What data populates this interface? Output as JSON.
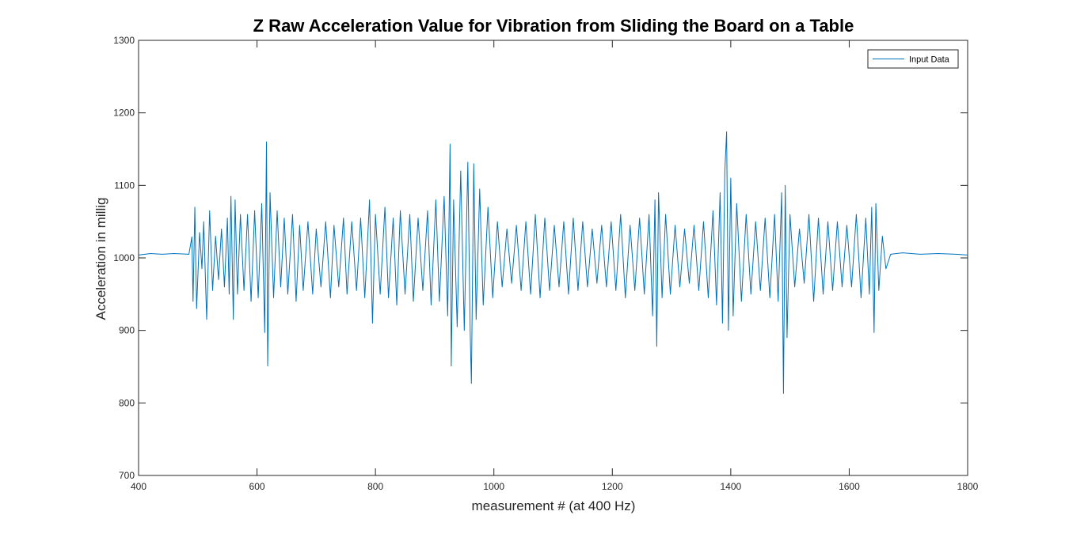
{
  "chart_data": {
    "type": "line",
    "title": "Z Raw Acceleration Value for Vibration from Sliding the Board on a Table",
    "xlabel": "measurement # (at 400 Hz)",
    "ylabel": "Acceleration in millig",
    "xlim": [
      400,
      1800
    ],
    "ylim": [
      700,
      1300
    ],
    "xticks": [
      400,
      600,
      800,
      1000,
      1200,
      1400,
      1600,
      1800
    ],
    "yticks": [
      700,
      800,
      900,
      1000,
      1100,
      1200,
      1300
    ],
    "grid": false,
    "legend_position": "top-right",
    "series": [
      {
        "name": "Input Data",
        "color": "#0072BD",
        "points": [
          [
            400,
            1004
          ],
          [
            420,
            1006
          ],
          [
            440,
            1005
          ],
          [
            460,
            1006
          ],
          [
            485,
            1005
          ],
          [
            490,
            1029
          ],
          [
            492,
            940
          ],
          [
            495,
            1070
          ],
          [
            498,
            930
          ],
          [
            503,
            1035
          ],
          [
            507,
            985
          ],
          [
            510,
            1050
          ],
          [
            515,
            915
          ],
          [
            520,
            1065
          ],
          [
            525,
            955
          ],
          [
            530,
            1030
          ],
          [
            535,
            970
          ],
          [
            540,
            1040
          ],
          [
            545,
            960
          ],
          [
            550,
            1055
          ],
          [
            553,
            950
          ],
          [
            556,
            1085
          ],
          [
            560,
            915
          ],
          [
            563,
            1080
          ],
          [
            567,
            950
          ],
          [
            572,
            1060
          ],
          [
            578,
            955
          ],
          [
            584,
            1060
          ],
          [
            590,
            940
          ],
          [
            596,
            1065
          ],
          [
            602,
            945
          ],
          [
            608,
            1075
          ],
          [
            613,
            897
          ],
          [
            616,
            1160
          ],
          [
            618,
            851
          ],
          [
            622,
            1090
          ],
          [
            628,
            945
          ],
          [
            634,
            1065
          ],
          [
            640,
            960
          ],
          [
            646,
            1055
          ],
          [
            652,
            950
          ],
          [
            660,
            1060
          ],
          [
            666,
            940
          ],
          [
            672,
            1045
          ],
          [
            678,
            955
          ],
          [
            686,
            1050
          ],
          [
            694,
            950
          ],
          [
            700,
            1040
          ],
          [
            708,
            960
          ],
          [
            716,
            1050
          ],
          [
            724,
            945
          ],
          [
            730,
            1045
          ],
          [
            738,
            960
          ],
          [
            746,
            1055
          ],
          [
            752,
            950
          ],
          [
            760,
            1050
          ],
          [
            768,
            955
          ],
          [
            775,
            1055
          ],
          [
            782,
            945
          ],
          [
            790,
            1080
          ],
          [
            795,
            910
          ],
          [
            800,
            1060
          ],
          [
            808,
            950
          ],
          [
            816,
            1070
          ],
          [
            822,
            945
          ],
          [
            830,
            1055
          ],
          [
            836,
            935
          ],
          [
            842,
            1065
          ],
          [
            850,
            950
          ],
          [
            858,
            1060
          ],
          [
            864,
            940
          ],
          [
            872,
            1055
          ],
          [
            880,
            955
          ],
          [
            888,
            1065
          ],
          [
            894,
            935
          ],
          [
            902,
            1080
          ],
          [
            908,
            940
          ],
          [
            916,
            1085
          ],
          [
            922,
            920
          ],
          [
            926,
            1157
          ],
          [
            928,
            851
          ],
          [
            932,
            1080
          ],
          [
            938,
            905
          ],
          [
            944,
            1120
          ],
          [
            950,
            900
          ],
          [
            956,
            1132
          ],
          [
            960,
            897
          ],
          [
            962,
            827
          ],
          [
            966,
            1130
          ],
          [
            970,
            915
          ],
          [
            976,
            1095
          ],
          [
            982,
            935
          ],
          [
            990,
            1070
          ],
          [
            998,
            945
          ],
          [
            1006,
            1050
          ],
          [
            1014,
            960
          ],
          [
            1022,
            1040
          ],
          [
            1030,
            965
          ],
          [
            1038,
            1045
          ],
          [
            1046,
            955
          ],
          [
            1054,
            1050
          ],
          [
            1062,
            950
          ],
          [
            1070,
            1060
          ],
          [
            1078,
            945
          ],
          [
            1086,
            1055
          ],
          [
            1094,
            955
          ],
          [
            1102,
            1045
          ],
          [
            1110,
            960
          ],
          [
            1118,
            1050
          ],
          [
            1126,
            950
          ],
          [
            1134,
            1055
          ],
          [
            1142,
            955
          ],
          [
            1150,
            1050
          ],
          [
            1158,
            960
          ],
          [
            1166,
            1040
          ],
          [
            1174,
            965
          ],
          [
            1182,
            1045
          ],
          [
            1190,
            960
          ],
          [
            1198,
            1050
          ],
          [
            1206,
            955
          ],
          [
            1214,
            1060
          ],
          [
            1222,
            945
          ],
          [
            1230,
            1045
          ],
          [
            1238,
            955
          ],
          [
            1246,
            1055
          ],
          [
            1254,
            950
          ],
          [
            1262,
            1060
          ],
          [
            1268,
            920
          ],
          [
            1272,
            1080
          ],
          [
            1275,
            878
          ],
          [
            1278,
            1090
          ],
          [
            1284,
            945
          ],
          [
            1290,
            1060
          ],
          [
            1298,
            950
          ],
          [
            1306,
            1045
          ],
          [
            1314,
            960
          ],
          [
            1322,
            1040
          ],
          [
            1330,
            965
          ],
          [
            1338,
            1045
          ],
          [
            1346,
            955
          ],
          [
            1354,
            1050
          ],
          [
            1362,
            945
          ],
          [
            1370,
            1065
          ],
          [
            1376,
            935
          ],
          [
            1382,
            1090
          ],
          [
            1386,
            910
          ],
          [
            1390,
            1120
          ],
          [
            1393,
            1174
          ],
          [
            1396,
            900
          ],
          [
            1400,
            1110
          ],
          [
            1404,
            920
          ],
          [
            1410,
            1075
          ],
          [
            1418,
            940
          ],
          [
            1426,
            1060
          ],
          [
            1434,
            950
          ],
          [
            1442,
            1050
          ],
          [
            1450,
            955
          ],
          [
            1458,
            1055
          ],
          [
            1466,
            945
          ],
          [
            1474,
            1060
          ],
          [
            1480,
            940
          ],
          [
            1486,
            1090
          ],
          [
            1489,
            813
          ],
          [
            1492,
            1100
          ],
          [
            1495,
            890
          ],
          [
            1500,
            1060
          ],
          [
            1508,
            960
          ],
          [
            1516,
            1040
          ],
          [
            1524,
            965
          ],
          [
            1532,
            1060
          ],
          [
            1540,
            940
          ],
          [
            1548,
            1055
          ],
          [
            1556,
            950
          ],
          [
            1564,
            1050
          ],
          [
            1572,
            955
          ],
          [
            1580,
            1050
          ],
          [
            1588,
            960
          ],
          [
            1596,
            1045
          ],
          [
            1604,
            960
          ],
          [
            1612,
            1060
          ],
          [
            1620,
            945
          ],
          [
            1628,
            1055
          ],
          [
            1634,
            950
          ],
          [
            1638,
            1070
          ],
          [
            1642,
            897
          ],
          [
            1645,
            1075
          ],
          [
            1650,
            955
          ],
          [
            1656,
            1030
          ],
          [
            1662,
            985
          ],
          [
            1670,
            1005
          ],
          [
            1690,
            1007
          ],
          [
            1720,
            1005
          ],
          [
            1750,
            1006
          ],
          [
            1780,
            1005
          ],
          [
            1800,
            1004
          ]
        ]
      }
    ]
  }
}
